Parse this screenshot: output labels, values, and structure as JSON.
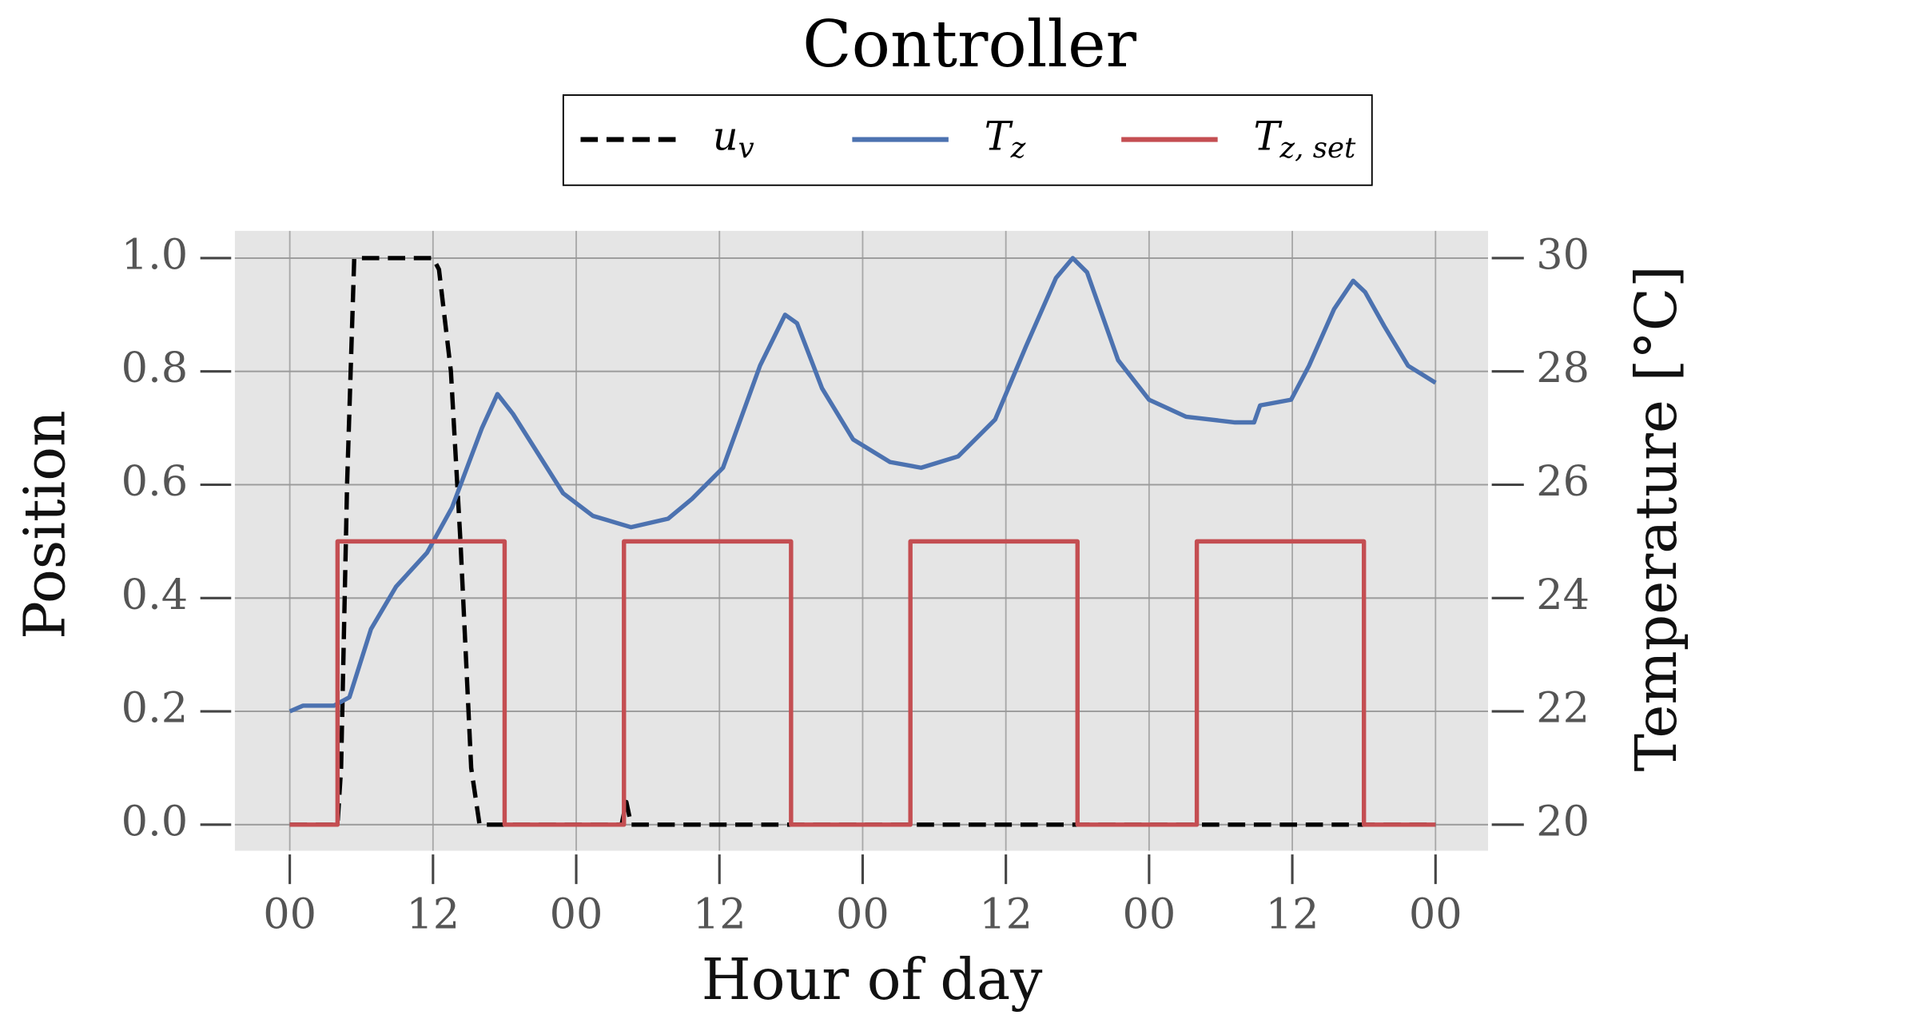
{
  "chart_data": {
    "type": "line",
    "title": "Controller",
    "xlabel": "Hour of day",
    "ylabel": "Position",
    "y2label": "Temperature [°C]",
    "xlim": [
      -4.6,
      100.4
    ],
    "xticks": [
      {
        "value": 0,
        "label": "00"
      },
      {
        "value": 12,
        "label": "12"
      },
      {
        "value": 24,
        "label": "00"
      },
      {
        "value": 36,
        "label": "12"
      },
      {
        "value": 48,
        "label": "00"
      },
      {
        "value": 60,
        "label": "12"
      },
      {
        "value": 72,
        "label": "00"
      },
      {
        "value": 84,
        "label": "12"
      },
      {
        "value": 96,
        "label": "00"
      }
    ],
    "ylim": [
      -0.046,
      1.048
    ],
    "yticks": [
      {
        "value": 0,
        "label": "0.0"
      },
      {
        "value": 0.2,
        "label": "0.2"
      },
      {
        "value": 0.4,
        "label": "0.4"
      },
      {
        "value": 0.6,
        "label": "0.6"
      },
      {
        "value": 0.8,
        "label": "0.8"
      },
      {
        "value": 1,
        "label": "1.0"
      }
    ],
    "y2lim": [
      19.54,
      30.48
    ],
    "y2ticks": [
      20,
      22,
      24,
      26,
      28,
      30
    ],
    "grid": true,
    "legend": "top",
    "series": [
      {
        "name": "uv",
        "color": "#000000",
        "linestyle": "dashed",
        "axis": "y",
        "x": [
          0,
          4,
          4.3,
          4.8,
          5.4,
          12,
          12.5,
          13.5,
          14.3,
          15.2,
          15.9,
          27.8,
          28.2,
          28.6,
          96
        ],
        "values": [
          0,
          0,
          0.1,
          0.6,
          1,
          1,
          0.98,
          0.8,
          0.5,
          0.1,
          0,
          0,
          0.04,
          0,
          0
        ]
      },
      {
        "name": "Tz",
        "color": "#4c72b0",
        "linestyle": "solid",
        "axis": "y2",
        "x": [
          0,
          1.1,
          3.7,
          5,
          6.8,
          8.9,
          11.5,
          13.6,
          16.1,
          17.4,
          18.7,
          22.9,
          25.4,
          28.6,
          31.7,
          33.7,
          36.3,
          39.4,
          41.5,
          42.5,
          44.6,
          47.2,
          50.3,
          52.9,
          56,
          59.1,
          61.7,
          64.2,
          65.6,
          66.8,
          69.4,
          72,
          75.1,
          79.2,
          80.8,
          81.3,
          83.9,
          85.4,
          87.5,
          89.1,
          90.1,
          91.7,
          93.7,
          96
        ],
        "values": [
          22.0,
          22.1,
          22.1,
          22.25,
          23.45,
          24.2,
          24.8,
          25.6,
          27.0,
          27.6,
          27.25,
          25.85,
          25.45,
          25.25,
          25.4,
          25.75,
          26.3,
          28.1,
          29.0,
          28.85,
          27.7,
          26.8,
          26.4,
          26.3,
          26.5,
          27.15,
          28.45,
          29.65,
          30.0,
          29.75,
          28.2,
          27.5,
          27.2,
          27.1,
          27.1,
          27.4,
          27.5,
          28.1,
          29.1,
          29.6,
          29.4,
          28.8,
          28.1,
          27.8
        ]
      },
      {
        "name": "Tz, set",
        "color": "#c44e52",
        "linestyle": "solid",
        "axis": "y2",
        "x": [
          0,
          4,
          4,
          18,
          18,
          28,
          28,
          42,
          42,
          52,
          52,
          66,
          66,
          76,
          76,
          90,
          90,
          96
        ],
        "values": [
          20,
          20,
          25,
          25,
          20,
          20,
          25,
          25,
          20,
          20,
          25,
          25,
          20,
          20,
          25,
          25,
          20,
          20
        ]
      }
    ]
  }
}
